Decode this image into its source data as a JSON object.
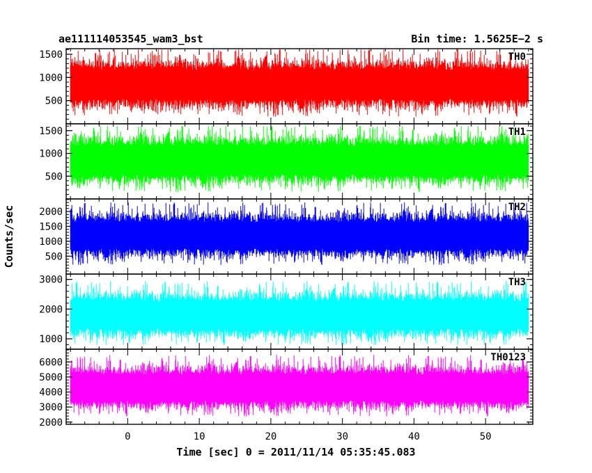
{
  "header": {
    "left": "ae111114053545_wam3_bst",
    "right": "Bin time: 1.5625E−2 s"
  },
  "chart_data": {
    "type": "line",
    "title": "ae111114053545_wam3_bst",
    "subtitle": "Bin time: 1.5625E−2 s",
    "xlabel": "Time [sec] 0 = 2011/11/14 05:35:45.083",
    "ylabel": "Counts/sec",
    "xlim": [
      -8.6,
      56.6
    ],
    "xticks": [
      0,
      10,
      20,
      30,
      40,
      50
    ],
    "x_range_data": [
      -8,
      56
    ],
    "grid": false,
    "legend": "none",
    "panels": [
      {
        "name": "TH0",
        "color": "#ff0000",
        "ylim": [
          0,
          1620
        ],
        "yticks": [
          500,
          1000,
          1500
        ],
        "baseline": 850,
        "amplitude": 560,
        "max": 1600,
        "min": 150
      },
      {
        "name": "TH1",
        "color": "#00ff00",
        "ylim": [
          0,
          1650
        ],
        "yticks": [
          500,
          1000,
          1500
        ],
        "baseline": 850,
        "amplitude": 560,
        "max": 1600,
        "min": 150
      },
      {
        "name": "TH2",
        "color": "#0000ff",
        "ylim": [
          -100,
          2420
        ],
        "yticks": [
          500,
          1000,
          1500,
          2000
        ],
        "baseline": 1200,
        "amplitude": 800,
        "max": 2300,
        "min": 150
      },
      {
        "name": "TH3",
        "color": "#00ffff",
        "ylim": [
          650,
          3180
        ],
        "yticks": [
          1000,
          2000,
          3000
        ],
        "baseline": 1800,
        "amplitude": 820,
        "max": 3050,
        "min": 800
      },
      {
        "name": "TH0123",
        "color": "#ff00ff",
        "ylim": [
          1850,
          6850
        ],
        "yticks": [
          2000,
          3000,
          4000,
          5000,
          6000
        ],
        "baseline": 4300,
        "amplitude": 1550,
        "max": 6600,
        "min": 2000
      }
    ]
  }
}
